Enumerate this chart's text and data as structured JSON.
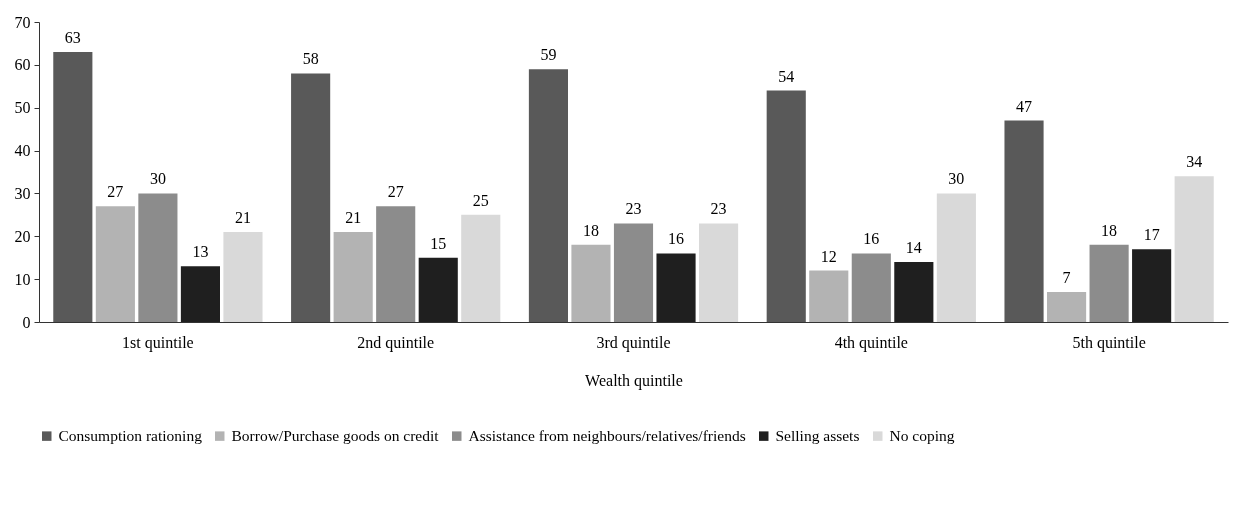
{
  "chart_data": {
    "type": "bar",
    "xlabel": "Wealth quintile",
    "categories": [
      "1st quintile",
      "2nd quintile",
      "3rd quintile",
      "4th quintile",
      "5th quintile"
    ],
    "series": [
      {
        "name": "Consumption rationing",
        "color": "#595959",
        "values": [
          63,
          58,
          59,
          54,
          47
        ]
      },
      {
        "name": "Borrow/Purchase goods on credit",
        "color": "#b3b3b3",
        "values": [
          27,
          21,
          18,
          12,
          7
        ]
      },
      {
        "name": "Assistance from neighbours/relatives/friends",
        "color": "#8c8c8c",
        "values": [
          30,
          27,
          23,
          16,
          18
        ]
      },
      {
        "name": "Selling assets",
        "color": "#1f1f1f",
        "values": [
          13,
          15,
          16,
          14,
          17
        ]
      },
      {
        "name": "No coping",
        "color": "#d9d9d9",
        "values": [
          21,
          25,
          23,
          30,
          34
        ]
      }
    ],
    "ylim": [
      0,
      70
    ],
    "yticks": [
      0,
      10,
      20,
      30,
      40,
      50,
      60,
      70
    ],
    "grid": false,
    "legend": "bottom",
    "data_labels": true
  }
}
